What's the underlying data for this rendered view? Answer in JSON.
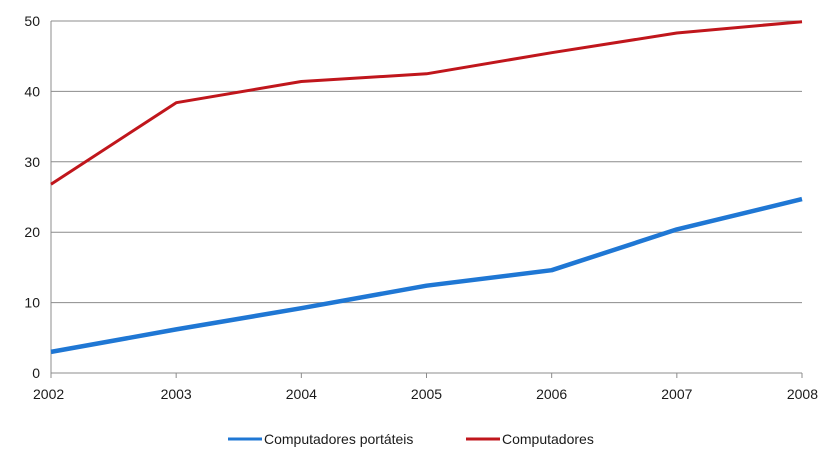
{
  "chart_data": {
    "type": "line",
    "categories": [
      "2002",
      "2003",
      "2004",
      "2005",
      "2006",
      "2007",
      "2008"
    ],
    "x": [
      2002,
      2003,
      2004,
      2005,
      2006,
      2007,
      2008
    ],
    "ylim": [
      0,
      50
    ],
    "yticks": [
      0,
      10,
      20,
      30,
      40,
      50
    ],
    "grid": true,
    "legend_position": "bottom",
    "series": [
      {
        "name": "Computadores portáteis",
        "color": "#1f77d4",
        "values": [
          3,
          6.2,
          9.2,
          12.4,
          14.6,
          20.4,
          24.7
        ]
      },
      {
        "name": "Computadores",
        "color": "#c0161c",
        "values": [
          26.8,
          38.4,
          41.4,
          42.5,
          45.5,
          48.3,
          49.9
        ]
      }
    ]
  }
}
